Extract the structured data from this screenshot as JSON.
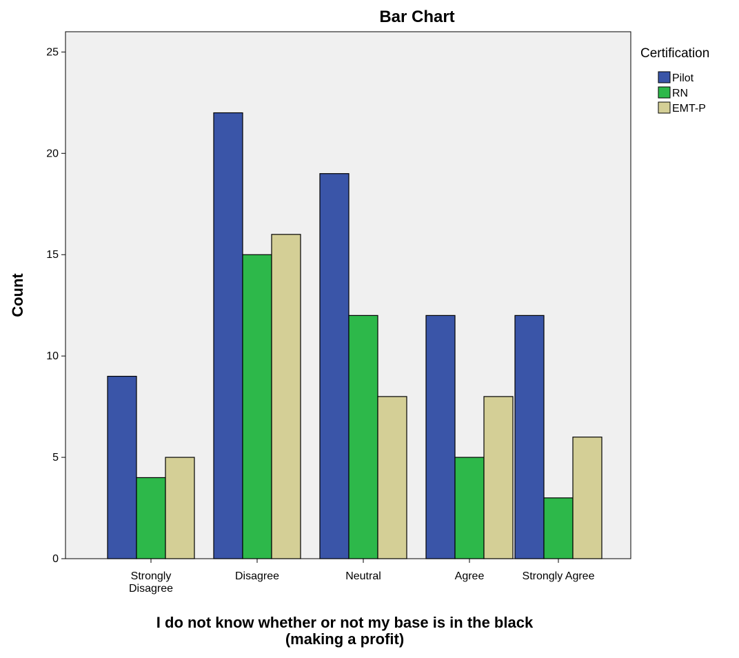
{
  "chart_data": {
    "type": "bar",
    "title": "Bar Chart",
    "xlabel": "I do not know whether or not my base is in the black (making a profit)",
    "xlabel_lines": [
      "I do not know whether or not my base is in the black",
      "(making a profit)"
    ],
    "ylabel": "Count",
    "ylim": [
      0,
      26
    ],
    "yticks": [
      0,
      5,
      10,
      15,
      20,
      25
    ],
    "categories": [
      "Strongly Disagree",
      "Disagree",
      "Neutral",
      "Agree",
      "Strongly Agree"
    ],
    "category_lines": [
      [
        "Strongly",
        "Disagree"
      ],
      [
        "Disagree"
      ],
      [
        "Neutral"
      ],
      [
        "Agree"
      ],
      [
        "Strongly Agree"
      ]
    ],
    "legend_title": "Certification",
    "legend_position": "right",
    "grid": false,
    "series": [
      {
        "name": "Pilot",
        "color": "#3a55a8",
        "values": [
          9,
          22,
          19,
          12,
          12
        ]
      },
      {
        "name": "RN",
        "color": "#2db84a",
        "values": [
          4,
          15,
          12,
          5,
          3
        ]
      },
      {
        "name": "EMT-P",
        "color": "#d4cf96",
        "values": [
          5,
          16,
          8,
          8,
          6
        ]
      }
    ],
    "plot_background": "#f0f0f0"
  }
}
